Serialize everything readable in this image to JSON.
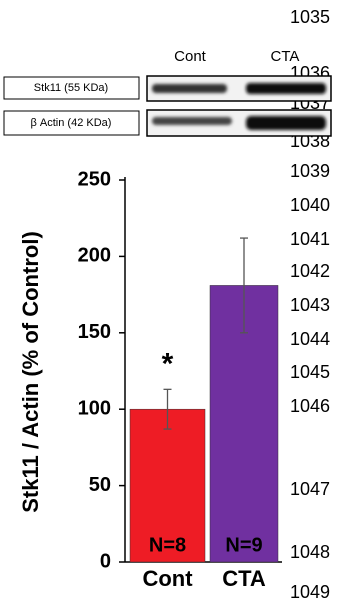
{
  "line_numbers": [
    1035,
    1036,
    1037,
    1038,
    1039,
    1040,
    1041,
    1042,
    1043,
    1044,
    1045,
    1046,
    1047,
    1048,
    1049
  ],
  "blot": {
    "lanes": [
      "Cont",
      "CTA"
    ],
    "rows": [
      "Stk11 (55 KDa)",
      "β Actin (42 KDa)"
    ]
  },
  "chart_data": {
    "type": "bar",
    "y_label": "Stk11 / Actin (% of Control)",
    "categories": [
      "Cont",
      "CTA"
    ],
    "values": [
      100,
      181
    ],
    "errors": [
      13,
      31
    ],
    "colors": [
      "#ee1c25",
      "#7030a0"
    ],
    "n_labels": [
      "N=8",
      "N=9"
    ],
    "significance": [
      "*",
      null
    ],
    "ylim": [
      0,
      250
    ],
    "yticks": [
      0,
      50,
      100,
      150,
      200,
      250
    ]
  }
}
